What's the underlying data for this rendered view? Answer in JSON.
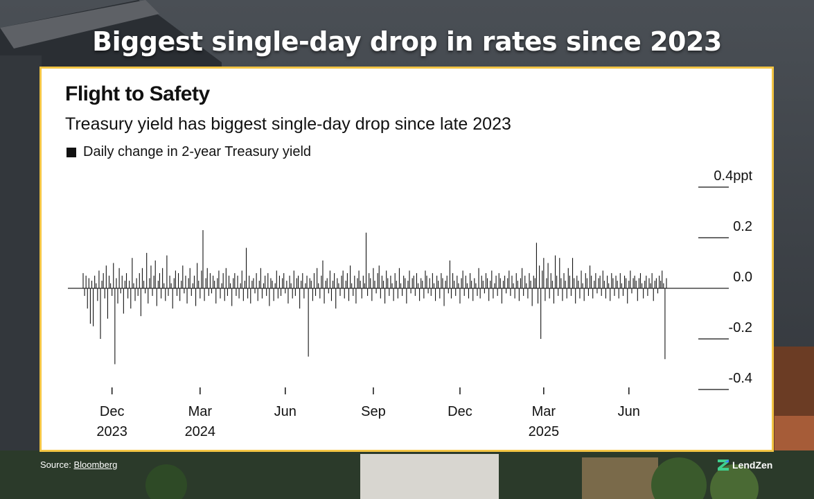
{
  "headline": "Biggest single-day drop in rates since 2023",
  "source": {
    "label": "Source:",
    "link": "Bloomberg"
  },
  "brand": "LendZen",
  "colors": {
    "accent_border": "#f3c544",
    "bar": "#111111",
    "logo_green": "#3fcf8e",
    "logo_blue": "#3b82f6"
  },
  "chart_data": {
    "type": "bar",
    "title": "Flight to Safety",
    "subtitle": "Treasury yield has biggest single-day drop since late 2023",
    "legend": "Daily change in 2-year Treasury yield",
    "ylim": [
      -0.4,
      0.4
    ],
    "y_ticks": [
      {
        "value": 0.4,
        "label": "0.4ppt"
      },
      {
        "value": 0.2,
        "label": "0.2"
      },
      {
        "value": 0.0,
        "label": "0.0"
      },
      {
        "value": -0.2,
        "label": "-0.2"
      },
      {
        "value": -0.4,
        "label": "-0.4"
      }
    ],
    "x_ticks": [
      {
        "label": "Dec",
        "year": "2023",
        "index": 20
      },
      {
        "label": "Mar",
        "year": "2024",
        "index": 81
      },
      {
        "label": "Jun",
        "year": "",
        "index": 140
      },
      {
        "label": "Sep",
        "year": "",
        "index": 201
      },
      {
        "label": "Dec",
        "year": "",
        "index": 261
      },
      {
        "label": "Mar",
        "year": "2025",
        "index": 319
      },
      {
        "label": "Jun",
        "year": "",
        "index": 378
      }
    ],
    "values": [
      0.06,
      -0.03,
      0.05,
      -0.08,
      0.04,
      -0.14,
      0.03,
      -0.15,
      0.05,
      0.02,
      -0.05,
      0.07,
      -0.2,
      0.03,
      0.06,
      -0.04,
      0.09,
      -0.12,
      0.05,
      0.02,
      -0.03,
      0.1,
      -0.3,
      0.04,
      -0.06,
      0.08,
      -0.02,
      0.05,
      -0.1,
      0.03,
      0.06,
      -0.04,
      0.03,
      -0.08,
      0.12,
      0.02,
      -0.05,
      0.04,
      -0.03,
      0.06,
      -0.11,
      0.08,
      0.03,
      -0.02,
      0.14,
      -0.06,
      0.04,
      0.09,
      -0.03,
      0.05,
      0.11,
      -0.07,
      0.03,
      0.06,
      -0.04,
      0.08,
      0.02,
      -0.05,
      0.13,
      -0.03,
      0.05,
      0.02,
      -0.08,
      0.04,
      0.07,
      -0.03,
      0.06,
      -0.05,
      0.03,
      0.09,
      -0.02,
      0.05,
      -0.06,
      0.04,
      0.08,
      -0.03,
      0.02,
      0.05,
      -0.07,
      0.1,
      0.03,
      -0.04,
      0.07,
      0.23,
      -0.05,
      0.04,
      0.08,
      -0.03,
      0.06,
      -0.02,
      0.05,
      0.03,
      -0.06,
      0.04,
      0.07,
      -0.04,
      0.02,
      0.06,
      -0.05,
      0.08,
      -0.03,
      0.05,
      0.02,
      -0.07,
      0.04,
      0.06,
      -0.03,
      0.05,
      -0.04,
      0.02,
      0.07,
      -0.05,
      0.03,
      0.16,
      -0.04,
      0.05,
      -0.06,
      0.03,
      0.04,
      -0.02,
      0.06,
      -0.05,
      0.03,
      0.08,
      -0.04,
      0.02,
      0.05,
      -0.03,
      0.06,
      -0.07,
      0.04,
      0.03,
      -0.05,
      0.02,
      0.07,
      -0.04,
      0.05,
      -0.03,
      0.04,
      0.06,
      -0.02,
      0.03,
      -0.06,
      0.05,
      0.02,
      -0.04,
      0.07,
      -0.03,
      0.04,
      0.05,
      -0.08,
      0.03,
      0.06,
      -0.04,
      0.02,
      0.05,
      -0.27,
      0.04,
      0.03,
      -0.05,
      0.06,
      -0.03,
      0.08,
      0.02,
      -0.04,
      0.05,
      0.11,
      -0.06,
      0.03,
      0.04,
      -0.02,
      0.07,
      -0.05,
      0.03,
      0.06,
      -0.08,
      0.04,
      0.02,
      -0.03,
      0.05,
      0.07,
      -0.04,
      0.03,
      0.06,
      -0.05,
      0.09,
      0.02,
      -0.03,
      0.05,
      -0.06,
      0.04,
      0.07,
      0.03,
      -0.04,
      0.05,
      0.02,
      0.22,
      -0.03,
      0.06,
      0.04,
      -0.05,
      0.08,
      0.03,
      -0.02,
      0.06,
      0.09,
      -0.04,
      0.05,
      0.03,
      -0.06,
      0.07,
      0.04,
      -0.03,
      0.05,
      0.02,
      -0.05,
      0.06,
      0.03,
      -0.04,
      0.08,
      0.02,
      -0.03,
      0.05,
      0.04,
      -0.06,
      0.03,
      0.07,
      -0.02,
      0.04,
      0.05,
      -0.03,
      0.06,
      0.02,
      -0.05,
      0.04,
      0.03,
      -0.04,
      0.07,
      0.05,
      -0.02,
      0.04,
      -0.03,
      0.06,
      0.02,
      -0.05,
      0.05,
      0.03,
      -0.04,
      0.06,
      0.04,
      -0.07,
      0.03,
      0.05,
      -0.02,
      0.11,
      -0.04,
      0.06,
      0.03,
      -0.03,
      0.05,
      0.02,
      -0.06,
      0.04,
      0.07,
      -0.03,
      0.05,
      0.02,
      -0.04,
      0.06,
      0.03,
      -0.05,
      0.04,
      0.02,
      -0.03,
      0.08,
      -0.04,
      0.05,
      0.03,
      -0.02,
      0.06,
      0.04,
      -0.05,
      0.03,
      0.07,
      -0.04,
      0.02,
      0.05,
      -0.03,
      0.06,
      0.04,
      -0.06,
      0.03,
      0.05,
      -0.02,
      0.04,
      0.07,
      -0.03,
      0.05,
      0.02,
      -0.04,
      0.06,
      0.03,
      -0.05,
      0.04,
      0.08,
      -0.03,
      0.05,
      0.02,
      -0.04,
      0.06,
      0.03,
      -0.07,
      0.05,
      0.04,
      0.18,
      -0.06,
      0.09,
      -0.2,
      0.07,
      0.12,
      -0.05,
      0.04,
      0.1,
      -0.04,
      0.06,
      0.03,
      -0.06,
      0.13,
      0.05,
      -0.03,
      0.12,
      0.04,
      -0.05,
      0.06,
      0.03,
      -0.04,
      0.08,
      0.05,
      -0.03,
      0.12,
      0.04,
      -0.06,
      0.05,
      0.03,
      -0.04,
      0.07,
      0.02,
      -0.05,
      0.06,
      0.04,
      -0.03,
      0.09,
      0.05,
      -0.04,
      0.03,
      0.06,
      -0.02,
      0.04,
      0.05,
      -0.03,
      0.07,
      0.03,
      -0.04,
      0.05,
      0.02,
      -0.05,
      0.06,
      0.04,
      -0.03,
      0.05,
      0.03,
      -0.04,
      0.06,
      0.02,
      -0.03,
      0.05,
      0.04,
      -0.06,
      0.03,
      0.07,
      -0.02,
      0.04,
      0.05,
      0.03,
      -0.05,
      0.04,
      0.06,
      0.02,
      -0.04,
      0.03,
      0.05,
      -0.03,
      0.04,
      0.02,
      0.06,
      -0.05,
      0.03,
      0.04,
      -0.02,
      0.05,
      0.03,
      0.07,
      0.02,
      -0.28,
      0.04
    ]
  }
}
